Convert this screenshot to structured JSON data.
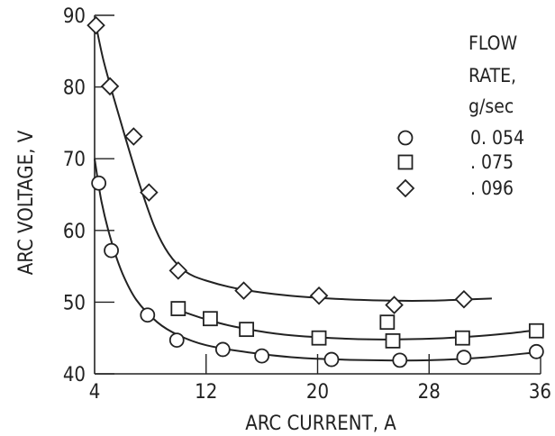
{
  "chart_data": {
    "type": "scatter",
    "xlabel": "ARC CURRENT,  A",
    "ylabel": "ARC VOLTAGE,  V",
    "xlim": [
      4,
      36
    ],
    "ylim": [
      40,
      90
    ],
    "xticks": [
      4,
      12,
      20,
      28,
      36
    ],
    "yticks": [
      40,
      50,
      60,
      70,
      80,
      90
    ],
    "xtick_labels": [
      "4",
      "12",
      "20",
      "28",
      "36"
    ],
    "ytick_labels": [
      "40",
      "50",
      "60",
      "70",
      "80",
      "90"
    ],
    "legend_title": [
      "FLOW",
      "RATE,",
      "g/sec"
    ],
    "legend_placement": "top-right",
    "grid": false,
    "series": [
      {
        "name": "0. 054",
        "marker": "circle",
        "points": [
          [
            4.3,
            66.6
          ],
          [
            5.2,
            57.2
          ],
          [
            7.8,
            48.2
          ],
          [
            9.9,
            44.7
          ],
          [
            13.2,
            43.4
          ],
          [
            16.0,
            42.5
          ],
          [
            21.0,
            42.0
          ],
          [
            25.9,
            41.9
          ],
          [
            30.5,
            42.3
          ],
          [
            35.7,
            43.1
          ]
        ],
        "curve": [
          [
            4.0,
            70.0
          ],
          [
            4.5,
            64.0
          ],
          [
            5.2,
            58.5
          ],
          [
            6.0,
            54.0
          ],
          [
            7.0,
            50.3
          ],
          [
            8.5,
            47.2
          ],
          [
            10.0,
            45.4
          ],
          [
            12.0,
            44.0
          ],
          [
            15.0,
            43.0
          ],
          [
            19.0,
            42.2
          ],
          [
            24.0,
            41.9
          ],
          [
            28.0,
            41.9
          ],
          [
            32.0,
            42.3
          ],
          [
            35.7,
            43.0
          ]
        ]
      },
      {
        "name": ". 075",
        "marker": "square",
        "points": [
          [
            10.0,
            49.1
          ],
          [
            12.3,
            47.7
          ],
          [
            14.9,
            46.2
          ],
          [
            20.1,
            45.0
          ],
          [
            25.0,
            47.2
          ],
          [
            25.4,
            44.6
          ],
          [
            30.4,
            45.0
          ],
          [
            35.7,
            46.0
          ]
        ],
        "curve": [
          [
            10.0,
            48.9
          ],
          [
            12.0,
            47.6
          ],
          [
            14.0,
            46.6
          ],
          [
            17.0,
            45.6
          ],
          [
            20.0,
            45.1
          ],
          [
            24.0,
            44.8
          ],
          [
            28.0,
            44.9
          ],
          [
            31.0,
            45.2
          ],
          [
            33.5,
            45.6
          ],
          [
            35.7,
            46.1
          ]
        ]
      },
      {
        "name": ". 096",
        "marker": "diamond",
        "points": [
          [
            4.1,
            88.6
          ],
          [
            5.1,
            80.1
          ],
          [
            6.8,
            73.1
          ],
          [
            7.9,
            65.3
          ],
          [
            10.0,
            54.4
          ],
          [
            14.7,
            51.6
          ],
          [
            20.1,
            50.9
          ],
          [
            25.5,
            49.6
          ],
          [
            30.5,
            50.4
          ]
        ],
        "curve": [
          [
            4.1,
            88.6
          ],
          [
            4.6,
            84.0
          ],
          [
            5.3,
            79.0
          ],
          [
            6.2,
            73.0
          ],
          [
            7.3,
            66.0
          ],
          [
            8.3,
            60.5
          ],
          [
            9.3,
            56.8
          ],
          [
            10.5,
            54.3
          ],
          [
            12.0,
            53.0
          ],
          [
            14.5,
            51.8
          ],
          [
            18.0,
            50.9
          ],
          [
            22.0,
            50.4
          ],
          [
            25.5,
            50.2
          ],
          [
            28.0,
            50.2
          ],
          [
            31.0,
            50.4
          ],
          [
            32.5,
            50.5
          ]
        ]
      }
    ]
  }
}
